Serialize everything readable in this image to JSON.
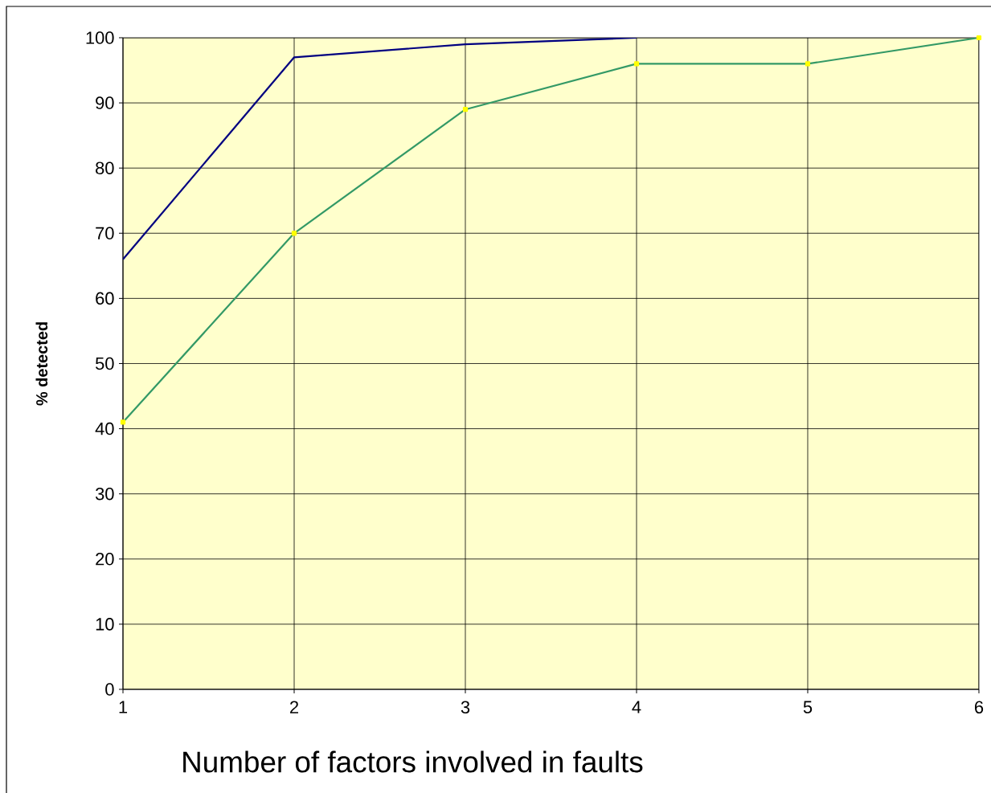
{
  "chart_data": {
    "type": "line",
    "xlabel": "Number of factors involved in faults",
    "ylabel": "% detected",
    "x": [
      1,
      2,
      3,
      4,
      5,
      6
    ],
    "series": [
      {
        "color": "#000080",
        "values": [
          66,
          97,
          99,
          100,
          null,
          null
        ],
        "marker": "none"
      },
      {
        "color": "#339966",
        "values": [
          41,
          70,
          89,
          96,
          96,
          100
        ],
        "marker": "square"
      }
    ],
    "xlim": [
      1,
      6
    ],
    "xticks": [
      1,
      2,
      3,
      4,
      5,
      6
    ],
    "ylim": [
      0,
      100
    ],
    "yticks": [
      0,
      10,
      20,
      30,
      40,
      50,
      60,
      70,
      80,
      90,
      100
    ],
    "grid": true
  }
}
